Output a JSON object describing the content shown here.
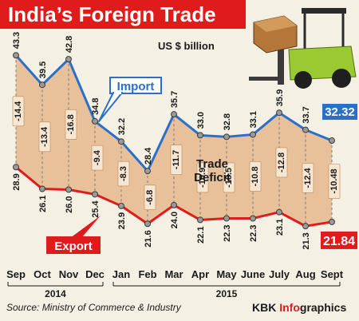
{
  "title": "India’s Foreign Trade",
  "unit": "US $ billion",
  "source": "Source: Ministry of Commerce & Industry",
  "credit_prefix": "KBK ",
  "credit_emph": "Info",
  "credit_suffix": "graphics",
  "colors": {
    "import": "#2a6fc9",
    "export": "#e01b1b",
    "deficit_fill": "#e8c19a",
    "background": "#f4f0e4",
    "title_bg": "#e01b1b"
  },
  "chart_data": {
    "type": "line",
    "categories": [
      "Sep",
      "Oct",
      "Nov",
      "Dec",
      "Jan",
      "Feb",
      "Mar",
      "Apr",
      "May",
      "June",
      "July",
      "Aug",
      "Sept"
    ],
    "year_groups": [
      {
        "label": "2014",
        "from": 0,
        "to": 3
      },
      {
        "label": "2015",
        "from": 4,
        "to": 12
      }
    ],
    "series": [
      {
        "name": "Import",
        "values": [
          43.3,
          39.5,
          42.8,
          34.8,
          32.2,
          28.4,
          35.7,
          33.0,
          32.8,
          33.1,
          35.9,
          33.7,
          32.32
        ],
        "labels": [
          "43.3",
          "39.5",
          "42.8",
          "34.8",
          "32.2",
          "28.4",
          "35.7",
          "33.0",
          "32.8",
          "33.1",
          "35.9",
          "33.7",
          "32.32"
        ]
      },
      {
        "name": "Export",
        "values": [
          28.9,
          26.1,
          26.0,
          25.4,
          23.9,
          21.6,
          24.0,
          22.1,
          22.3,
          22.3,
          23.1,
          21.3,
          21.84
        ],
        "labels": [
          "28.9",
          "26.1",
          "26.0",
          "25.4",
          "23.9",
          "21.6",
          "24.0",
          "22.1",
          "22.3",
          "22.3",
          "23.1",
          "21.3",
          "21.84"
        ]
      }
    ],
    "deficit": {
      "name": "Trade Deficit",
      "name_lines": [
        "Trade",
        "Deficit"
      ],
      "values": [
        -14.4,
        -13.4,
        -16.8,
        -9.4,
        -8.3,
        -6.8,
        -11.7,
        -10.9,
        -10.5,
        -10.8,
        -12.8,
        -12.4,
        -10.48
      ],
      "labels": [
        "-14.4",
        "-13.4",
        "-16.8",
        "-9.4",
        "-8.3",
        "-6.8",
        "-11.7",
        "-10.9",
        "-10.5",
        "-10.8",
        "-12.8",
        "-12.4",
        "-10.48"
      ]
    },
    "ylim": [
      17,
      46
    ],
    "grid": false,
    "legend": "inline-callouts"
  }
}
